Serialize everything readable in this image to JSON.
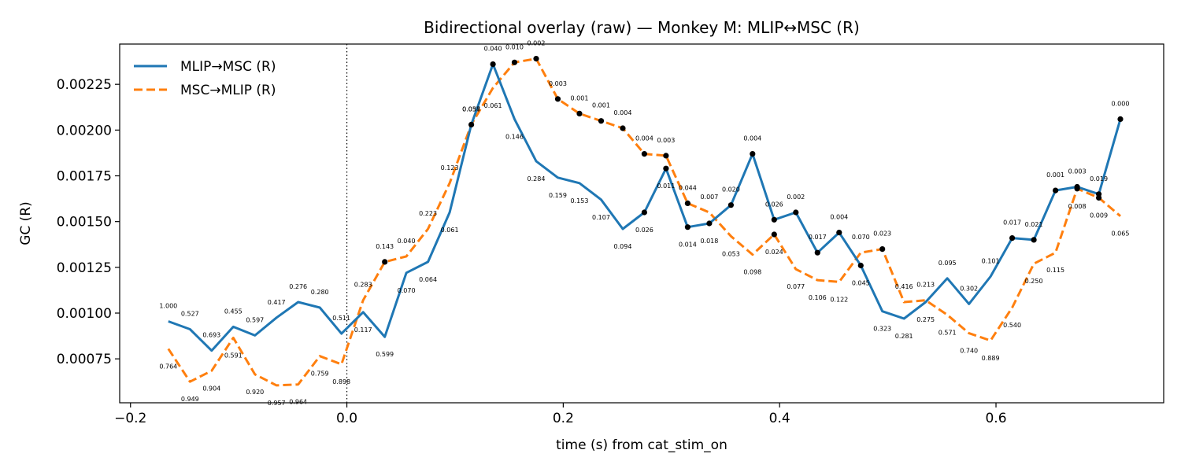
{
  "chart_data": {
    "type": "line",
    "title": "Bidirectional overlay (raw) — Monkey M: MLIP↔MSC (R)",
    "xlabel": "time (s) from cat_stim_on",
    "ylabel": "GC (R)",
    "xlim": [
      -0.21,
      0.755
    ],
    "ylim": [
      0.00051,
      0.00247
    ],
    "xticks": [
      -0.2,
      0.0,
      0.2,
      0.4,
      0.6
    ],
    "xtick_labels": [
      "−0.2",
      "0.0",
      "0.2",
      "0.4",
      "0.6"
    ],
    "yticks": [
      0.00075,
      0.001,
      0.00125,
      0.0015,
      0.00175,
      0.002,
      0.00225
    ],
    "ytick_labels": [
      "0.00075",
      "0.00100",
      "0.00125",
      "0.00150",
      "0.00175",
      "0.00200",
      "0.00225"
    ],
    "vline_x": 0.0,
    "legend_position": "top-left",
    "x": [
      -0.165,
      -0.145,
      -0.125,
      -0.105,
      -0.085,
      -0.065,
      -0.045,
      -0.025,
      -0.005,
      0.015,
      0.035,
      0.055,
      0.075,
      0.095,
      0.115,
      0.135,
      0.155,
      0.175,
      0.195,
      0.215,
      0.235,
      0.255,
      0.275,
      0.295,
      0.315,
      0.335,
      0.355,
      0.375,
      0.395,
      0.415,
      0.435,
      0.455,
      0.475,
      0.495,
      0.515,
      0.535,
      0.555,
      0.575,
      0.595,
      0.615,
      0.635,
      0.655,
      0.675,
      0.695,
      0.715
    ],
    "series": [
      {
        "name": "MLIP→MSC (R)",
        "color": "#1f77b4",
        "style": "solid",
        "values": [
          0.000955,
          0.000912,
          0.000795,
          0.000925,
          0.000878,
          0.000975,
          0.00106,
          0.00103,
          0.000888,
          0.001005,
          0.00087,
          0.00122,
          0.00128,
          0.00155,
          0.00203,
          0.00236,
          0.00206,
          0.00183,
          0.00174,
          0.00171,
          0.00162,
          0.00146,
          0.00155,
          0.00179,
          0.00147,
          0.00149,
          0.00159,
          0.00187,
          0.00151,
          0.00155,
          0.00133,
          0.00144,
          0.00126,
          0.00101,
          0.00097,
          0.00106,
          0.00119,
          0.00105,
          0.0012,
          0.00141,
          0.0014,
          0.00167,
          0.00169,
          0.00165,
          0.00206
        ],
        "pvals": [
          "1.000",
          "0.527",
          "0.693",
          "0.455",
          "0.597",
          "0.417",
          "0.276",
          "0.280",
          "0.511",
          "0.117",
          "0.599",
          "0.070",
          "0.064",
          "0.061",
          "0.058",
          "0.040",
          "0.146",
          "0.284",
          "0.159",
          "0.153",
          "0.107",
          "0.094",
          "0.026",
          "0.011",
          "0.014",
          "0.018",
          "0.020",
          "0.004",
          "0.026",
          "0.002",
          "0.017",
          "0.004",
          "0.045",
          "0.323",
          "0.281",
          "0.275",
          "0.095",
          "0.302",
          "0.101",
          "0.017",
          "0.021",
          "0.001",
          "0.003",
          "0.019",
          "0.000"
        ],
        "significant": [
          false,
          false,
          false,
          false,
          false,
          false,
          false,
          false,
          false,
          false,
          false,
          false,
          false,
          false,
          false,
          true,
          false,
          false,
          false,
          false,
          false,
          false,
          true,
          true,
          true,
          true,
          true,
          true,
          true,
          true,
          true,
          true,
          true,
          false,
          false,
          false,
          false,
          false,
          false,
          true,
          true,
          true,
          true,
          true,
          true
        ]
      },
      {
        "name": "MSC→MLIP (R)",
        "color": "#ff7f0e",
        "style": "dashed",
        "values": [
          0.000805,
          0.000625,
          0.000685,
          0.000865,
          0.000665,
          0.000605,
          0.00061,
          0.000765,
          0.00072,
          0.00107,
          0.00128,
          0.00131,
          0.00146,
          0.00171,
          0.00203,
          0.00223,
          0.00237,
          0.00239,
          0.00217,
          0.00209,
          0.00205,
          0.00201,
          0.00187,
          0.00186,
          0.0016,
          0.00155,
          0.00142,
          0.00132,
          0.00143,
          0.00124,
          0.00118,
          0.00117,
          0.00133,
          0.00135,
          0.00106,
          0.00107,
          0.00099,
          0.00089,
          0.00085,
          0.00103,
          0.00127,
          0.00133,
          0.00168,
          0.00163,
          0.00153
        ],
        "pvals": [
          "0.764",
          "0.949",
          "0.904",
          "0.591",
          "0.920",
          "0.957",
          "0.964",
          "0.759",
          "0.898",
          "0.283",
          "0.143",
          "0.040",
          "0.223",
          "0.123",
          "0.037",
          "0.061",
          "0.010",
          "0.002",
          "0.003",
          "0.001",
          "0.001",
          "0.004",
          "0.004",
          "0.003",
          "0.044",
          "0.007",
          "0.053",
          "0.098",
          "0.024",
          "0.077",
          "0.106",
          "0.122",
          "0.070",
          "0.023",
          "0.416",
          "0.213",
          "0.571",
          "0.740",
          "0.889",
          "0.540",
          "0.250",
          "0.115",
          "0.008",
          "0.009",
          "0.065"
        ],
        "significant": [
          false,
          false,
          false,
          false,
          false,
          false,
          false,
          false,
          false,
          false,
          true,
          false,
          false,
          false,
          true,
          false,
          true,
          true,
          true,
          true,
          true,
          true,
          true,
          true,
          true,
          false,
          false,
          false,
          true,
          false,
          false,
          false,
          false,
          true,
          false,
          false,
          false,
          false,
          false,
          false,
          false,
          false,
          true,
          true,
          false
        ]
      }
    ]
  }
}
